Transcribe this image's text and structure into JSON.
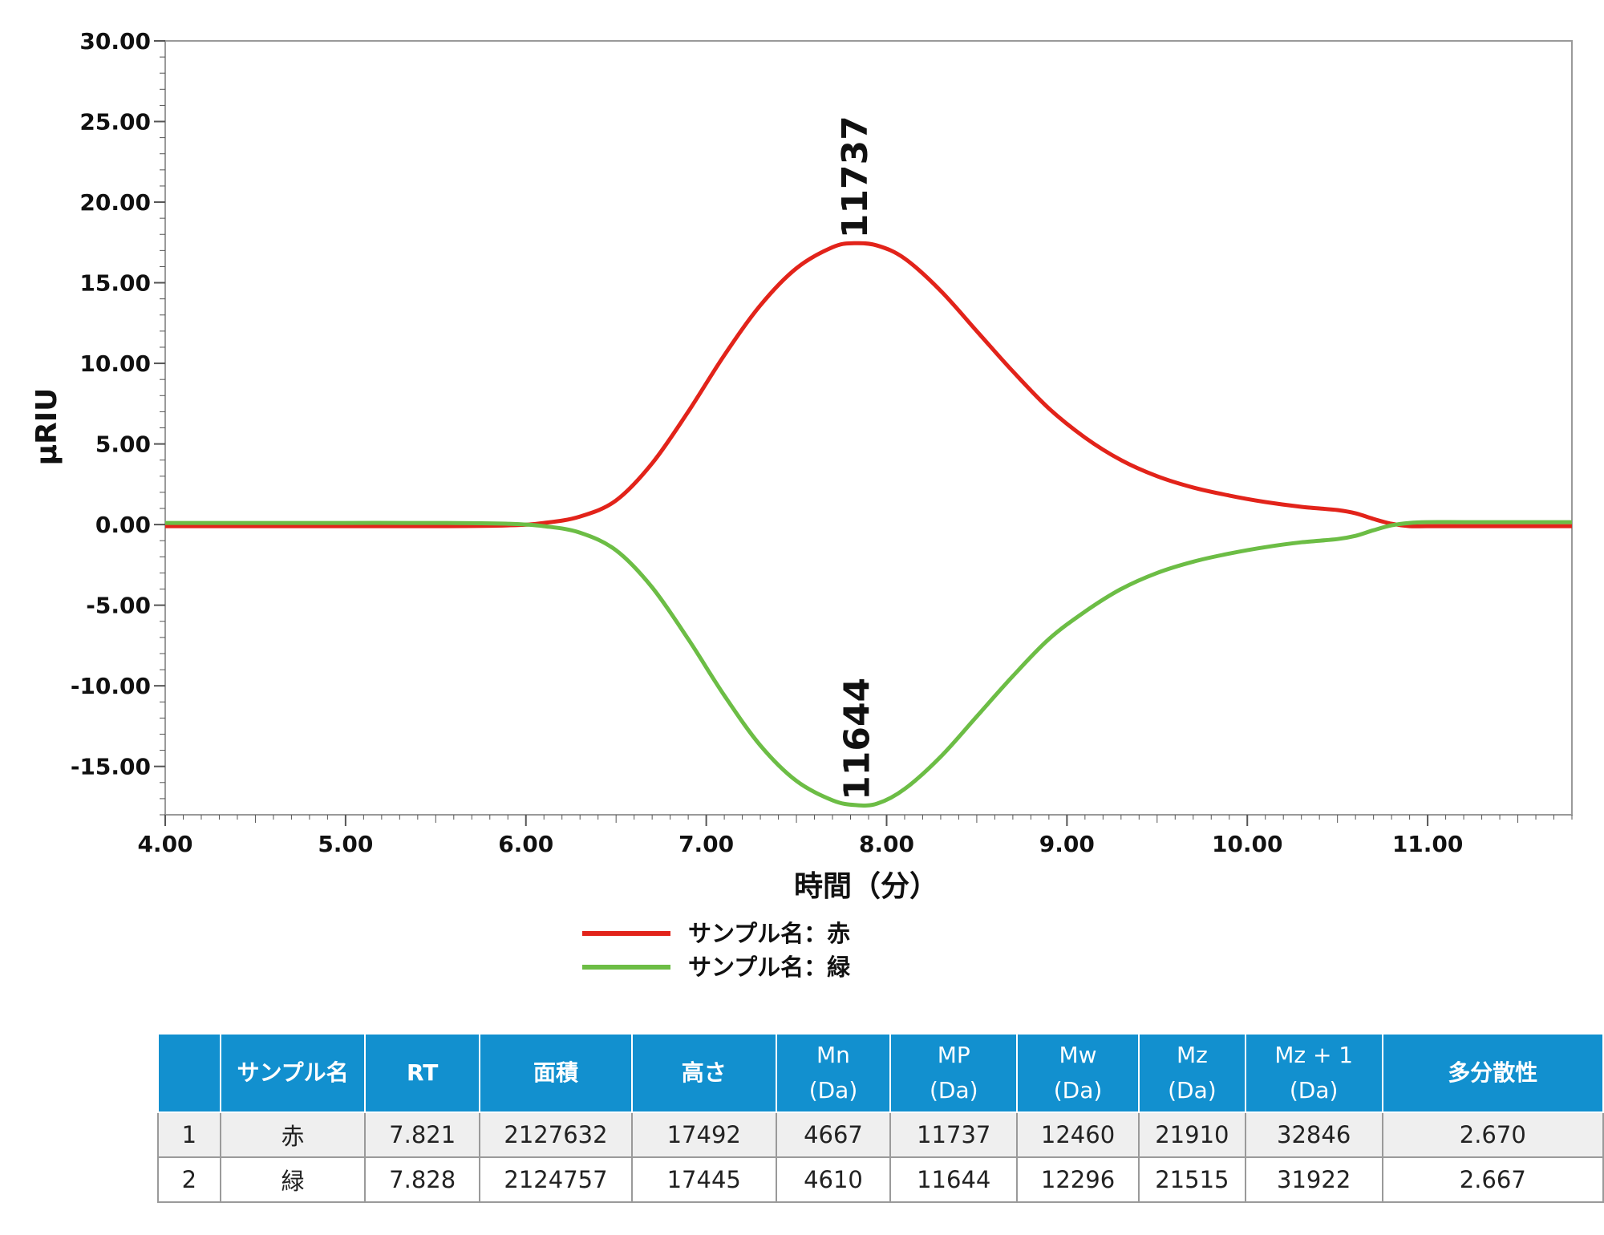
{
  "chart_data": {
    "type": "line",
    "xlabel": "時間（分）",
    "ylabel": "μRIU",
    "xlim": [
      4.0,
      11.8
    ],
    "ylim": [
      -18.0,
      30.0
    ],
    "x_ticks": [
      "4.00",
      "5.00",
      "6.00",
      "7.00",
      "8.00",
      "9.00",
      "10.00",
      "11.00"
    ],
    "y_ticks": [
      "30.00",
      "25.00",
      "20.00",
      "15.00",
      "10.00",
      "5.00",
      "0.00",
      "-5.00",
      "-10.00",
      "-15.00"
    ],
    "grid": false,
    "legend_position": "bottom",
    "series": [
      {
        "name": "サンプル名：赤",
        "color": "#e2231a",
        "x": [
          4.0,
          4.5,
          5.0,
          5.5,
          5.9,
          6.1,
          6.3,
          6.5,
          6.7,
          6.9,
          7.1,
          7.3,
          7.5,
          7.7,
          7.82,
          7.95,
          8.1,
          8.3,
          8.5,
          8.7,
          8.9,
          9.1,
          9.3,
          9.5,
          9.7,
          9.9,
          10.1,
          10.3,
          10.5,
          10.6,
          10.7,
          10.8,
          10.9,
          11.0,
          11.2,
          11.5,
          11.8
        ],
        "y": [
          -0.1,
          -0.1,
          -0.1,
          -0.1,
          -0.05,
          0.1,
          0.5,
          1.5,
          3.8,
          7.0,
          10.5,
          13.6,
          15.9,
          17.2,
          17.45,
          17.3,
          16.5,
          14.5,
          12.0,
          9.5,
          7.2,
          5.4,
          4.0,
          3.0,
          2.3,
          1.8,
          1.4,
          1.1,
          0.9,
          0.7,
          0.35,
          0.05,
          -0.1,
          -0.1,
          -0.1,
          -0.1,
          -0.1
        ]
      },
      {
        "name": "サンプル名：緑",
        "color": "#6cbd45",
        "x": [
          4.0,
          4.5,
          5.0,
          5.5,
          5.9,
          6.1,
          6.3,
          6.5,
          6.7,
          6.9,
          7.1,
          7.3,
          7.5,
          7.7,
          7.83,
          7.95,
          8.1,
          8.3,
          8.5,
          8.7,
          8.9,
          9.1,
          9.3,
          9.5,
          9.7,
          9.9,
          10.1,
          10.3,
          10.5,
          10.6,
          10.7,
          10.8,
          10.9,
          11.0,
          11.2,
          11.5,
          11.8
        ],
        "y": [
          0.1,
          0.1,
          0.1,
          0.1,
          0.05,
          -0.1,
          -0.5,
          -1.6,
          -3.9,
          -7.1,
          -10.6,
          -13.7,
          -15.9,
          -17.1,
          -17.4,
          -17.3,
          -16.4,
          -14.4,
          -11.9,
          -9.4,
          -7.1,
          -5.4,
          -4.0,
          -3.0,
          -2.3,
          -1.8,
          -1.4,
          -1.1,
          -0.9,
          -0.7,
          -0.35,
          -0.05,
          0.1,
          0.15,
          0.15,
          0.15,
          0.15
        ]
      }
    ],
    "annotations": [
      {
        "text": "11737",
        "series": 0,
        "x": 7.82,
        "y": 17.45
      },
      {
        "text": "11644",
        "series": 1,
        "x": 7.83,
        "y": -17.4
      }
    ]
  },
  "table": {
    "headers": [
      {
        "main": "",
        "sub": ""
      },
      {
        "main": "サンプル名",
        "sub": ""
      },
      {
        "main": "RT",
        "sub": ""
      },
      {
        "main": "面積",
        "sub": ""
      },
      {
        "main": "高さ",
        "sub": ""
      },
      {
        "main": "Mn",
        "sub": "(Da)"
      },
      {
        "main": "MP",
        "sub": "(Da)"
      },
      {
        "main": "Mw",
        "sub": "(Da)"
      },
      {
        "main": "Mz",
        "sub": "(Da)"
      },
      {
        "main": "Mz + 1",
        "sub": "(Da)"
      },
      {
        "main": "多分散性",
        "sub": ""
      }
    ],
    "rows": [
      [
        "1",
        "赤",
        "7.821",
        "2127632",
        "17492",
        "4667",
        "11737",
        "12460",
        "21910",
        "32846",
        "2.670"
      ],
      [
        "2",
        "緑",
        "7.828",
        "2124757",
        "17445",
        "4610",
        "11644",
        "12296",
        "21515",
        "31922",
        "2.667"
      ]
    ]
  }
}
